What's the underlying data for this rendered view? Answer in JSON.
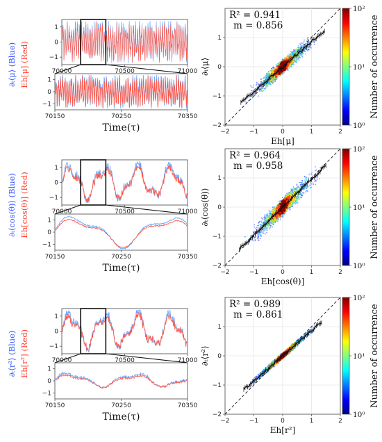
{
  "chart_data": [
    {
      "type": "line",
      "name": "mu",
      "ylabel_blue": "∂ₜ⟨μ⟩ (Blue)",
      "ylabel_red": "Eh[μ] (Red)",
      "xlabel": "Time(τ)",
      "top": {
        "xlim": [
          70000,
          71000
        ],
        "ylim": [
          -1.5,
          1.5
        ],
        "xticks": [
          "70000",
          "70500",
          "71000"
        ],
        "yticks": [
          "1",
          "0",
          "−1"
        ],
        "zoom_window": [
          70150,
          70350
        ],
        "style": "fast"
      },
      "bottom": {
        "xlim": [
          70150,
          70350
        ],
        "ylim": [
          -1.5,
          1.5
        ],
        "xticks": [
          "70150",
          "70250",
          "70350"
        ],
        "yticks": [
          "1",
          "0",
          "−1"
        ],
        "style": "fast"
      },
      "series": [
        {
          "color": "#6ea8ff"
        },
        {
          "color": "#ff5a4a"
        }
      ]
    },
    {
      "type": "scatter",
      "name": "mu-scatter",
      "stat_r2": "R² = 0.941",
      "stat_m": "m = 0.856",
      "xlabel": "Eh[μ]",
      "ylabel": "∂ₜ⟨μ⟩",
      "xlim": [
        -2,
        2
      ],
      "ylim": [
        -2,
        2
      ],
      "xticks": [
        "−2",
        "−1",
        "0",
        "1",
        "2"
      ],
      "yticks": [
        "1",
        "0",
        "−1",
        "−2"
      ],
      "r2": 0.941,
      "slope": 0.856,
      "spread": 0.28,
      "extent": 1.45,
      "colorbar": {
        "label": "Number of occurrence",
        "scale": "log",
        "ticks": [
          "10²",
          "10¹",
          "10⁰"
        ]
      }
    },
    {
      "type": "line",
      "name": "cos",
      "ylabel_blue": "∂ₜ⟨cos(θ)⟩ (Blue)",
      "ylabel_red": "Eh[cos(θ)] (Red)",
      "xlabel": "Time(τ)",
      "top": {
        "xlim": [
          70000,
          71000
        ],
        "ylim": [
          -1.5,
          1.5
        ],
        "xticks": [
          "70000",
          "70500",
          "71000"
        ],
        "yticks": [
          "1",
          "0",
          "−1"
        ],
        "zoom_window": [
          70150,
          70350
        ],
        "style": "medium"
      },
      "bottom": {
        "xlim": [
          70150,
          70350
        ],
        "ylim": [
          -1.5,
          1.5
        ],
        "xticks": [
          "70150",
          "70250",
          "70350"
        ],
        "yticks": [
          "1",
          "0",
          "−1"
        ],
        "style": "slow"
      },
      "series": [
        {
          "color": "#6ea8ff"
        },
        {
          "color": "#ff5a4a"
        }
      ]
    },
    {
      "type": "scatter",
      "name": "cos-scatter",
      "stat_r2": "R² = 0.964",
      "stat_m": "m = 0.958",
      "xlabel": "Eh[cos(θ)]",
      "ylabel": "∂ₜ⟨cos(θ)⟩",
      "xlim": [
        -2,
        2
      ],
      "ylim": [
        -2,
        2
      ],
      "xticks": [
        "−2",
        "−1",
        "0",
        "1",
        "2"
      ],
      "yticks": [
        "1",
        "0",
        "−1",
        "−2"
      ],
      "r2": 0.964,
      "slope": 0.958,
      "spread": 0.34,
      "extent": 1.5,
      "colorbar": {
        "label": "Number of occurrence",
        "scale": "log",
        "ticks": [
          "10²",
          "10¹",
          "10⁰"
        ]
      }
    },
    {
      "type": "line",
      "name": "r2",
      "ylabel_blue": "∂ₜ⟨r²⟩ (Blue)",
      "ylabel_red": "Eh[r²] (Red)",
      "xlabel": "Time(τ)",
      "top": {
        "xlim": [
          70000,
          71000
        ],
        "ylim": [
          -1.5,
          1.5
        ],
        "xticks": [
          "70000",
          "70500",
          "71000"
        ],
        "yticks": [
          "1",
          "0",
          "−1"
        ],
        "zoom_window": [
          70150,
          70350
        ],
        "style": "medium"
      },
      "bottom": {
        "xlim": [
          70150,
          70350
        ],
        "ylim": [
          -1.5,
          1.5
        ],
        "xticks": [
          "70150",
          "70250",
          "70350"
        ],
        "yticks": [
          "1",
          "0",
          "−1"
        ],
        "style": "gentle"
      },
      "series": [
        {
          "color": "#6ea8ff"
        },
        {
          "color": "#ff5a4a"
        }
      ]
    },
    {
      "type": "scatter",
      "name": "r2-scatter",
      "stat_r2": "R² = 0.989",
      "stat_m": "m = 0.861",
      "xlabel": "Eh[r²]",
      "ylabel": "∂ₜ⟨r²⟩",
      "xlim": [
        -2,
        2
      ],
      "ylim": [
        -2,
        2
      ],
      "xticks": [
        "−2",
        "−1",
        "0",
        "1",
        "2"
      ],
      "yticks": [
        "1",
        "0",
        "−1",
        "−2"
      ],
      "r2": 0.989,
      "slope": 0.861,
      "spread": 0.12,
      "extent": 1.35,
      "colorbar": {
        "label": "Number of occurrence",
        "scale": "log",
        "ticks": [
          "10²",
          "10¹",
          "10⁰"
        ]
      }
    }
  ]
}
